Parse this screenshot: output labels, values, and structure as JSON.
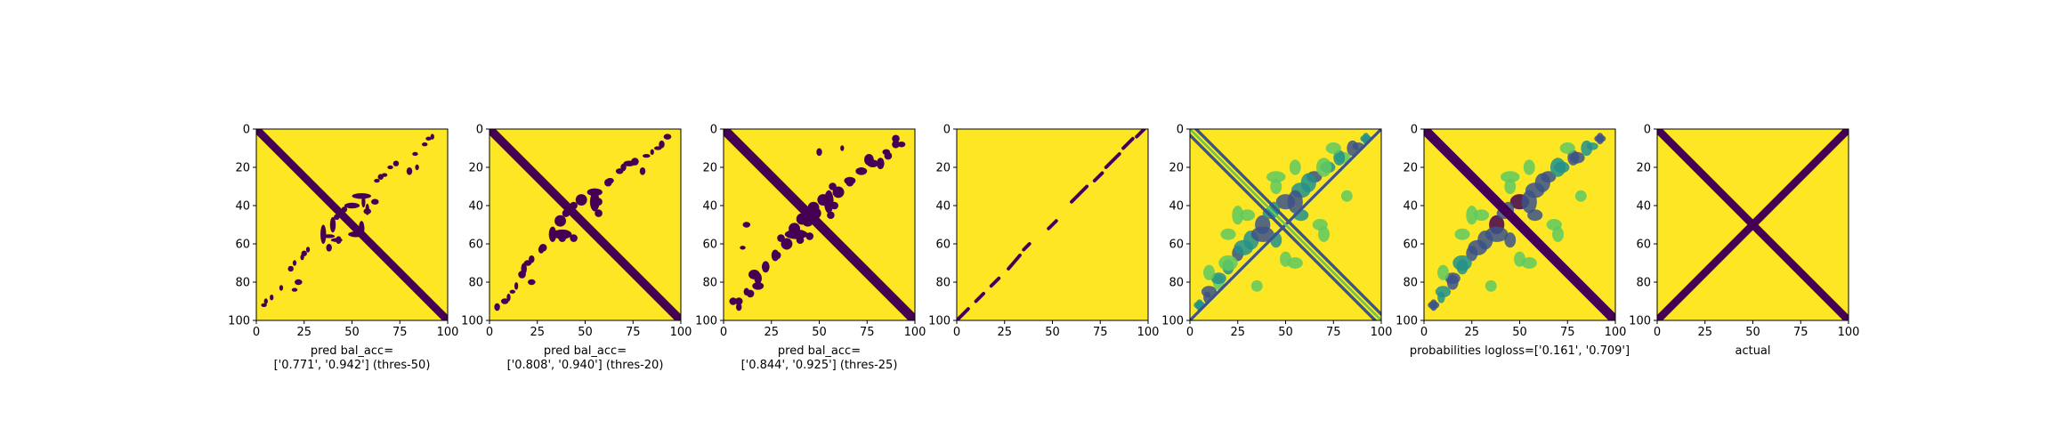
{
  "colors": {
    "background": "#fde725",
    "foreground": "#440154",
    "frame": "#000000",
    "viridis": [
      "#440154",
      "#3b528b",
      "#21918c",
      "#5ec962",
      "#fde725"
    ]
  },
  "chart_data": [
    {
      "type": "heatmap",
      "kind": "binary",
      "xlim": [
        0,
        100
      ],
      "ylim": [
        100,
        0
      ],
      "xticks": [
        "0",
        "25",
        "50",
        "75",
        "100"
      ],
      "yticks": [
        "0",
        "20",
        "40",
        "60",
        "80",
        "100"
      ],
      "caption_lines": [
        "pred bal_acc=",
        "['0.771', '0.942'] (thres-50)"
      ],
      "diagonal": {
        "from": [
          0,
          0
        ],
        "to": [
          100,
          100
        ],
        "width": 4
      },
      "antidiagonal": [],
      "blobs": [
        [
          90,
          5,
          1.5,
          1
        ],
        [
          88,
          8,
          1.5,
          1
        ],
        [
          83,
          13,
          1.5,
          1
        ],
        [
          70,
          20,
          1.5,
          1
        ],
        [
          67,
          24,
          1.5,
          1
        ],
        [
          63,
          27,
          1.5,
          1
        ],
        [
          55,
          35,
          5,
          1.5
        ],
        [
          50,
          40,
          4,
          1.5
        ],
        [
          46,
          42,
          1.5,
          1.5
        ],
        [
          62,
          38,
          2,
          1.5
        ],
        [
          58,
          43,
          2,
          1.5
        ],
        [
          52,
          55,
          4,
          1.5
        ],
        [
          38,
          56,
          3,
          1
        ],
        [
          42,
          58,
          3,
          1
        ],
        [
          25,
          65,
          1.5,
          1.5
        ],
        [
          18,
          73,
          1.5,
          1.5
        ],
        [
          22,
          80,
          2,
          1.5
        ],
        [
          20,
          84,
          1.5,
          1
        ],
        [
          4,
          92,
          1.5,
          1
        ]
      ]
    },
    {
      "type": "heatmap",
      "kind": "binary",
      "xlim": [
        0,
        100
      ],
      "ylim": [
        100,
        0
      ],
      "xticks": [
        "0",
        "25",
        "50",
        "75",
        "100"
      ],
      "yticks": [
        "0",
        "20",
        "40",
        "60",
        "80",
        "100"
      ],
      "caption_lines": [
        "pred bal_acc=",
        "['0.808', '0.940'] (thres-20)"
      ],
      "diagonal": {
        "from": [
          0,
          0
        ],
        "to": [
          100,
          100
        ],
        "width": 4.5
      },
      "antidiagonal": [],
      "blobs": [
        [
          93,
          4,
          2,
          1.5
        ],
        [
          88,
          10,
          2,
          1
        ],
        [
          82,
          14,
          2,
          1
        ],
        [
          73,
          18,
          3,
          1.5
        ],
        [
          68,
          22,
          2,
          1.5
        ],
        [
          63,
          27,
          2,
          1.5
        ],
        [
          55,
          33,
          4,
          2
        ],
        [
          48,
          37,
          3,
          3
        ],
        [
          44,
          40,
          2,
          2
        ],
        [
          57,
          38,
          2,
          2
        ],
        [
          57,
          44,
          2,
          2
        ],
        [
          38,
          55,
          5,
          2.5
        ],
        [
          28,
          62,
          2,
          2
        ],
        [
          20,
          70,
          2,
          1.5
        ],
        [
          17,
          76,
          2,
          2
        ],
        [
          22,
          80,
          2,
          1.5
        ],
        [
          8,
          90,
          2,
          1.5
        ],
        [
          12,
          85,
          1.5,
          1
        ]
      ]
    },
    {
      "type": "heatmap",
      "kind": "binary",
      "xlim": [
        0,
        100
      ],
      "ylim": [
        100,
        0
      ],
      "xticks": [
        "0",
        "25",
        "50",
        "75",
        "100"
      ],
      "yticks": [
        "0",
        "20",
        "40",
        "60",
        "80",
        "100"
      ],
      "caption_lines": [
        "pred bal_acc=",
        "['0.844', '0.925'] (thres-25)"
      ],
      "diagonal": {
        "from": [
          0,
          0
        ],
        "to": [
          100,
          100
        ],
        "width": 5
      },
      "antidiagonal": [],
      "blobs": [
        [
          90,
          5,
          2,
          2
        ],
        [
          93,
          8,
          2,
          1.5
        ],
        [
          85,
          12,
          2,
          1.5
        ],
        [
          78,
          18,
          3,
          2
        ],
        [
          72,
          22,
          3,
          2
        ],
        [
          66,
          27,
          3,
          2
        ],
        [
          60,
          33,
          3,
          3
        ],
        [
          52,
          37,
          3,
          3
        ],
        [
          47,
          41,
          3,
          3
        ],
        [
          44,
          48,
          3,
          3
        ],
        [
          58,
          40,
          2,
          2
        ],
        [
          56,
          45,
          2,
          2
        ],
        [
          38,
          55,
          6,
          2.5
        ],
        [
          30,
          57,
          2,
          2
        ],
        [
          33,
          61,
          2,
          2
        ],
        [
          28,
          66,
          2,
          2
        ],
        [
          22,
          72,
          2,
          2
        ],
        [
          16,
          76,
          3,
          2.5
        ],
        [
          18,
          82,
          3,
          2
        ],
        [
          14,
          86,
          2,
          2
        ],
        [
          8,
          90,
          2,
          2
        ],
        [
          12,
          50,
          2,
          1.5
        ],
        [
          10,
          62,
          1.5,
          1
        ]
      ]
    },
    {
      "type": "heatmap",
      "kind": "binary",
      "xlim": [
        0,
        100
      ],
      "ylim": [
        100,
        0
      ],
      "xticks": [
        "0",
        "25",
        "50",
        "75",
        "100"
      ],
      "yticks": [
        "0",
        "20",
        "40",
        "60",
        "80",
        "100"
      ],
      "caption_lines": [],
      "diagonal": null,
      "antidiagonal_dashed": true,
      "antidiagonal": [
        [
          0,
          100,
          6,
          94
        ],
        [
          10,
          90,
          14,
          86
        ],
        [
          18,
          82,
          22,
          78
        ],
        [
          27,
          73,
          33,
          66
        ],
        [
          35,
          63,
          38,
          60
        ],
        [
          48,
          52,
          52,
          48
        ],
        [
          60,
          38,
          68,
          30
        ],
        [
          72,
          27,
          76,
          23
        ],
        [
          78,
          20,
          85,
          13
        ],
        [
          87,
          10,
          92,
          5
        ],
        [
          94,
          4,
          98,
          0
        ]
      ],
      "blobs": []
    },
    {
      "type": "heatmap",
      "kind": "probability",
      "xlim": [
        0,
        100
      ],
      "ylim": [
        100,
        0
      ],
      "xticks": [
        "0",
        "25",
        "50",
        "75",
        "100"
      ],
      "yticks": [
        "0",
        "20",
        "40",
        "60",
        "80",
        "100"
      ],
      "caption_lines": [],
      "diagonal": {
        "from": [
          0,
          0
        ],
        "to": [
          100,
          100
        ],
        "width": 3,
        "color": "#3b528b",
        "double": true
      },
      "antidiagonal": [
        [
          0,
          100,
          100,
          0
        ]
      ],
      "blobs": [
        [
          92,
          5,
          3,
          2,
          "#21918c"
        ],
        [
          88,
          9,
          3,
          2,
          "#3b528b"
        ],
        [
          80,
          15,
          4,
          3,
          "#5ec962"
        ],
        [
          72,
          20,
          4,
          3,
          "#21918c"
        ],
        [
          65,
          25,
          4,
          3,
          "#3b528b"
        ],
        [
          58,
          32,
          5,
          4,
          "#21918c"
        ],
        [
          50,
          38,
          5,
          4,
          "#3b528b"
        ],
        [
          42,
          44,
          4,
          3,
          "#21918c"
        ],
        [
          38,
          55,
          6,
          4,
          "#3b528b"
        ],
        [
          58,
          45,
          4,
          3,
          "#21918c"
        ],
        [
          28,
          62,
          5,
          4,
          "#21918c"
        ],
        [
          20,
          70,
          5,
          4,
          "#5ec962"
        ],
        [
          15,
          78,
          4,
          3,
          "#21918c"
        ],
        [
          10,
          85,
          4,
          3,
          "#3b528b"
        ],
        [
          5,
          92,
          3,
          2,
          "#21918c"
        ],
        [
          75,
          10,
          4,
          3,
          "#5ec962"
        ],
        [
          30,
          45,
          4,
          3,
          "#5ec962"
        ],
        [
          68,
          50,
          4,
          3,
          "#5ec962"
        ],
        [
          45,
          25,
          5,
          3,
          "#5ec962"
        ],
        [
          20,
          55,
          4,
          3,
          "#5ec962"
        ],
        [
          82,
          35,
          3,
          3,
          "#5ec962"
        ],
        [
          55,
          70,
          4,
          3,
          "#5ec962"
        ]
      ]
    },
    {
      "type": "heatmap",
      "kind": "probability",
      "xlim": [
        0,
        100
      ],
      "ylim": [
        100,
        0
      ],
      "xticks": [
        "0",
        "25",
        "50",
        "75",
        "100"
      ],
      "yticks": [
        "0",
        "20",
        "40",
        "60",
        "80",
        "100"
      ],
      "caption_lines": [
        "probabilities logloss=['0.161', '0.709']"
      ],
      "diagonal": {
        "from": [
          0,
          0
        ],
        "to": [
          100,
          100
        ],
        "width": 5
      },
      "antidiagonal": [],
      "blobs": [
        [
          92,
          5,
          3,
          2,
          "#3b528b"
        ],
        [
          88,
          9,
          3,
          2,
          "#21918c"
        ],
        [
          80,
          15,
          4,
          3,
          "#3b528b"
        ],
        [
          72,
          20,
          4,
          3,
          "#21918c"
        ],
        [
          65,
          25,
          4,
          3,
          "#3b528b"
        ],
        [
          58,
          32,
          5,
          4,
          "#3b528b"
        ],
        [
          50,
          38,
          5,
          4,
          "#440154"
        ],
        [
          42,
          44,
          4,
          3,
          "#3b528b"
        ],
        [
          38,
          55,
          6,
          4,
          "#3b528b"
        ],
        [
          58,
          45,
          4,
          3,
          "#3b528b"
        ],
        [
          28,
          62,
          5,
          4,
          "#3b528b"
        ],
        [
          20,
          70,
          5,
          4,
          "#21918c"
        ],
        [
          15,
          78,
          4,
          3,
          "#3b528b"
        ],
        [
          10,
          85,
          4,
          3,
          "#21918c"
        ],
        [
          5,
          92,
          3,
          2,
          "#3b528b"
        ],
        [
          75,
          10,
          4,
          3,
          "#5ec962"
        ],
        [
          30,
          45,
          4,
          3,
          "#5ec962"
        ],
        [
          68,
          50,
          4,
          3,
          "#5ec962"
        ],
        [
          45,
          25,
          5,
          3,
          "#5ec962"
        ],
        [
          20,
          55,
          4,
          3,
          "#5ec962"
        ],
        [
          82,
          35,
          3,
          3,
          "#5ec962"
        ],
        [
          55,
          70,
          4,
          3,
          "#5ec962"
        ]
      ]
    },
    {
      "type": "heatmap",
      "kind": "binary",
      "xlim": [
        0,
        100
      ],
      "ylim": [
        100,
        0
      ],
      "xticks": [
        "0",
        "25",
        "50",
        "75",
        "100"
      ],
      "yticks": [
        "0",
        "20",
        "40",
        "60",
        "80",
        "100"
      ],
      "caption_lines": [
        "actual"
      ],
      "diagonal": {
        "from": [
          0,
          0
        ],
        "to": [
          100,
          100
        ],
        "width": 4
      },
      "antidiagonal": [
        [
          0,
          100,
          100,
          0
        ]
      ],
      "antidiagonal_width": 4,
      "blobs": []
    }
  ]
}
